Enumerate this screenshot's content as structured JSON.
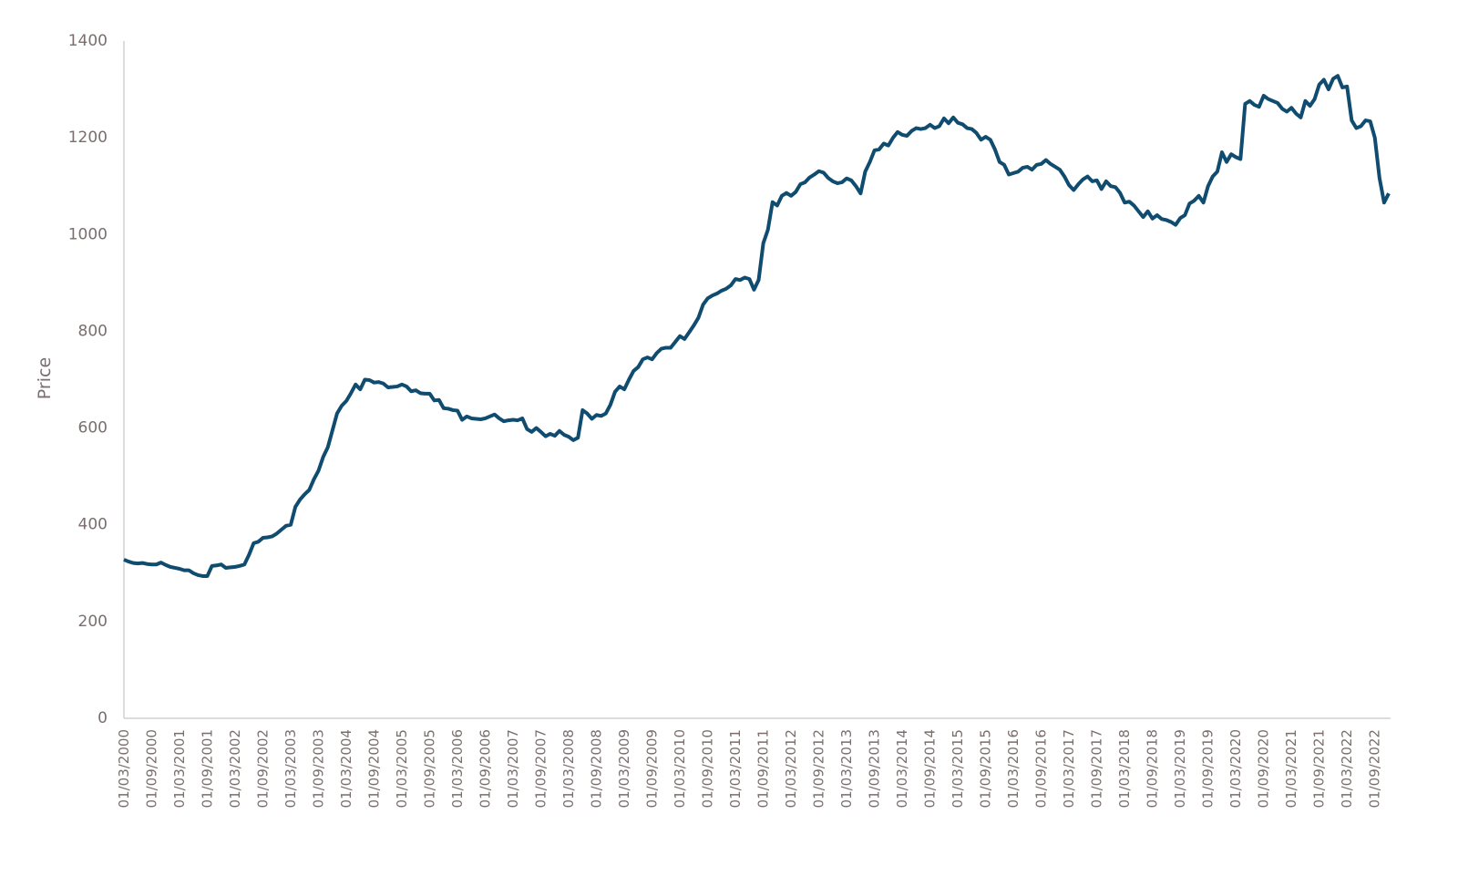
{
  "chart_data": {
    "type": "line",
    "y_label": "Price",
    "categories": [
      "01/03/2000",
      null,
      null,
      null,
      null,
      null,
      "01/09/2000",
      null,
      null,
      null,
      null,
      null,
      "01/03/2001",
      null,
      null,
      null,
      null,
      null,
      "01/09/2001",
      null,
      null,
      null,
      null,
      null,
      "01/03/2002",
      null,
      null,
      null,
      null,
      null,
      "01/09/2002",
      null,
      null,
      null,
      null,
      null,
      "01/03/2003",
      null,
      null,
      null,
      null,
      null,
      "01/09/2003",
      null,
      null,
      null,
      null,
      null,
      "01/03/2004",
      null,
      null,
      null,
      null,
      null,
      "01/09/2004",
      null,
      null,
      null,
      null,
      null,
      "01/03/2005",
      null,
      null,
      null,
      null,
      null,
      "01/09/2005",
      null,
      null,
      null,
      null,
      null,
      "01/03/2006",
      null,
      null,
      null,
      null,
      null,
      "01/09/2006",
      null,
      null,
      null,
      null,
      null,
      "01/03/2007",
      null,
      null,
      null,
      null,
      null,
      "01/09/2007",
      null,
      null,
      null,
      null,
      null,
      "01/03/2008",
      null,
      null,
      null,
      null,
      null,
      "01/09/2008",
      null,
      null,
      null,
      null,
      null,
      "01/03/2009",
      null,
      null,
      null,
      null,
      null,
      "01/09/2009",
      null,
      null,
      null,
      null,
      null,
      "01/03/2010",
      null,
      null,
      null,
      null,
      null,
      "01/09/2010",
      null,
      null,
      null,
      null,
      null,
      "01/03/2011",
      null,
      null,
      null,
      null,
      null,
      "01/09/2011",
      null,
      null,
      null,
      null,
      null,
      "01/03/2012",
      null,
      null,
      null,
      null,
      null,
      "01/09/2012",
      null,
      null,
      null,
      null,
      null,
      "01/03/2013",
      null,
      null,
      null,
      null,
      null,
      "01/09/2013",
      null,
      null,
      null,
      null,
      null,
      "01/03/2014",
      null,
      null,
      null,
      null,
      null,
      "01/09/2014",
      null,
      null,
      null,
      null,
      null,
      "01/03/2015",
      null,
      null,
      null,
      null,
      null,
      "01/09/2015",
      null,
      null,
      null,
      null,
      null,
      "01/03/2016",
      null,
      null,
      null,
      null,
      null,
      "01/09/2016",
      null,
      null,
      null,
      null,
      null,
      "01/03/2017",
      null,
      null,
      null,
      null,
      null,
      "01/09/2017",
      null,
      null,
      null,
      null,
      null,
      "01/03/2018",
      null,
      null,
      null,
      null,
      null,
      "01/09/2018",
      null,
      null,
      null,
      null,
      null,
      "01/03/2019",
      null,
      null,
      null,
      null,
      null,
      "01/09/2019",
      null,
      null,
      null,
      null,
      null,
      "01/03/2020",
      null,
      null,
      null,
      null,
      null,
      "01/09/2020",
      null,
      null,
      null,
      null,
      null,
      "01/03/2021",
      null,
      null,
      null,
      null,
      null,
      "01/09/2021",
      null,
      null,
      null,
      null,
      null,
      "01/03/2022",
      null,
      null,
      null,
      null,
      null,
      "01/09/2022",
      null,
      null,
      null
    ],
    "values": [
      328,
      324,
      321,
      320,
      321,
      319,
      318,
      318,
      322,
      317,
      313,
      311,
      309,
      306,
      306,
      300,
      296,
      294,
      294,
      315,
      316,
      318,
      311,
      312,
      313,
      315,
      318,
      338,
      362,
      365,
      373,
      374,
      376,
      382,
      390,
      398,
      400,
      437,
      452,
      463,
      472,
      494,
      512,
      540,
      560,
      595,
      630,
      646,
      656,
      672,
      690,
      680,
      700,
      699,
      694,
      695,
      692,
      684,
      685,
      686,
      690,
      686,
      676,
      678,
      672,
      671,
      671,
      657,
      658,
      641,
      640,
      637,
      636,
      617,
      624,
      620,
      619,
      618,
      620,
      624,
      628,
      620,
      614,
      616,
      617,
      616,
      620,
      598,
      592,
      600,
      592,
      583,
      588,
      584,
      594,
      586,
      582,
      575,
      580,
      637,
      630,
      619,
      627,
      625,
      630,
      648,
      675,
      686,
      680,
      700,
      718,
      726,
      742,
      746,
      742,
      755,
      764,
      766,
      766,
      778,
      790,
      784,
      798,
      812,
      828,
      855,
      868,
      874,
      878,
      884,
      888,
      895,
      908,
      906,
      911,
      908,
      886,
      906,
      982,
      1010,
      1067,
      1060,
      1080,
      1086,
      1080,
      1088,
      1104,
      1108,
      1118,
      1124,
      1131,
      1128,
      1117,
      1110,
      1106,
      1108,
      1116,
      1112,
      1100,
      1085,
      1130,
      1150,
      1174,
      1176,
      1188,
      1184,
      1200,
      1212,
      1206,
      1204,
      1214,
      1220,
      1218,
      1220,
      1227,
      1220,
      1224,
      1240,
      1230,
      1242,
      1231,
      1228,
      1220,
      1218,
      1210,
      1196,
      1202,
      1196,
      1176,
      1150,
      1144,
      1124,
      1127,
      1130,
      1138,
      1140,
      1134,
      1144,
      1146,
      1154,
      1146,
      1140,
      1134,
      1120,
      1102,
      1092,
      1104,
      1114,
      1120,
      1110,
      1112,
      1094,
      1110,
      1100,
      1098,
      1086,
      1066,
      1068,
      1060,
      1048,
      1036,
      1048,
      1033,
      1040,
      1032,
      1030,
      1026,
      1020,
      1034,
      1040,
      1064,
      1070,
      1080,
      1066,
      1100,
      1120,
      1130,
      1170,
      1150,
      1166,
      1160,
      1156,
      1270,
      1276,
      1268,
      1264,
      1287,
      1280,
      1276,
      1272,
      1260,
      1254,
      1262,
      1250,
      1242,
      1276,
      1266,
      1280,
      1310,
      1320,
      1300,
      1322,
      1328,
      1304,
      1306,
      1236,
      1220,
      1224,
      1236,
      1234,
      1200,
      1117,
      1066,
      1085
    ],
    "color": "#0f4c70",
    "ylim": [
      0,
      1400
    ],
    "yticks": [
      0,
      200,
      400,
      600,
      800,
      1000,
      1200,
      1400
    ],
    "grid": false
  }
}
